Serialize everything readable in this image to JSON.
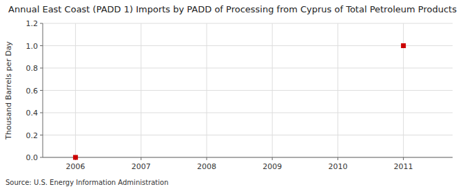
{
  "chart_data": {
    "type": "scatter",
    "title": "Annual East Coast (PADD 1) Imports by PADD of Processing from Cyprus of Total Petroleum Products",
    "ylabel": "Thousand Barrels per Day",
    "annotations": [
      "Source: U.S. Energy Information Administration"
    ],
    "x": [
      2006,
      2011
    ],
    "values": [
      0.0,
      1.0
    ],
    "color": "#cc0000",
    "marker": "square",
    "xlim": [
      2005.5,
      2011.75
    ],
    "xticks": [
      2006,
      2007,
      2008,
      2009,
      2010,
      2011
    ],
    "ylim": [
      0.0,
      1.2
    ],
    "yticks": [
      {
        "value": 0.0,
        "label": "0.0"
      },
      0.2,
      0.4,
      0.6,
      0.8,
      {
        "value": 1.0,
        "label": "1.0"
      },
      1.2
    ],
    "grid": true
  }
}
